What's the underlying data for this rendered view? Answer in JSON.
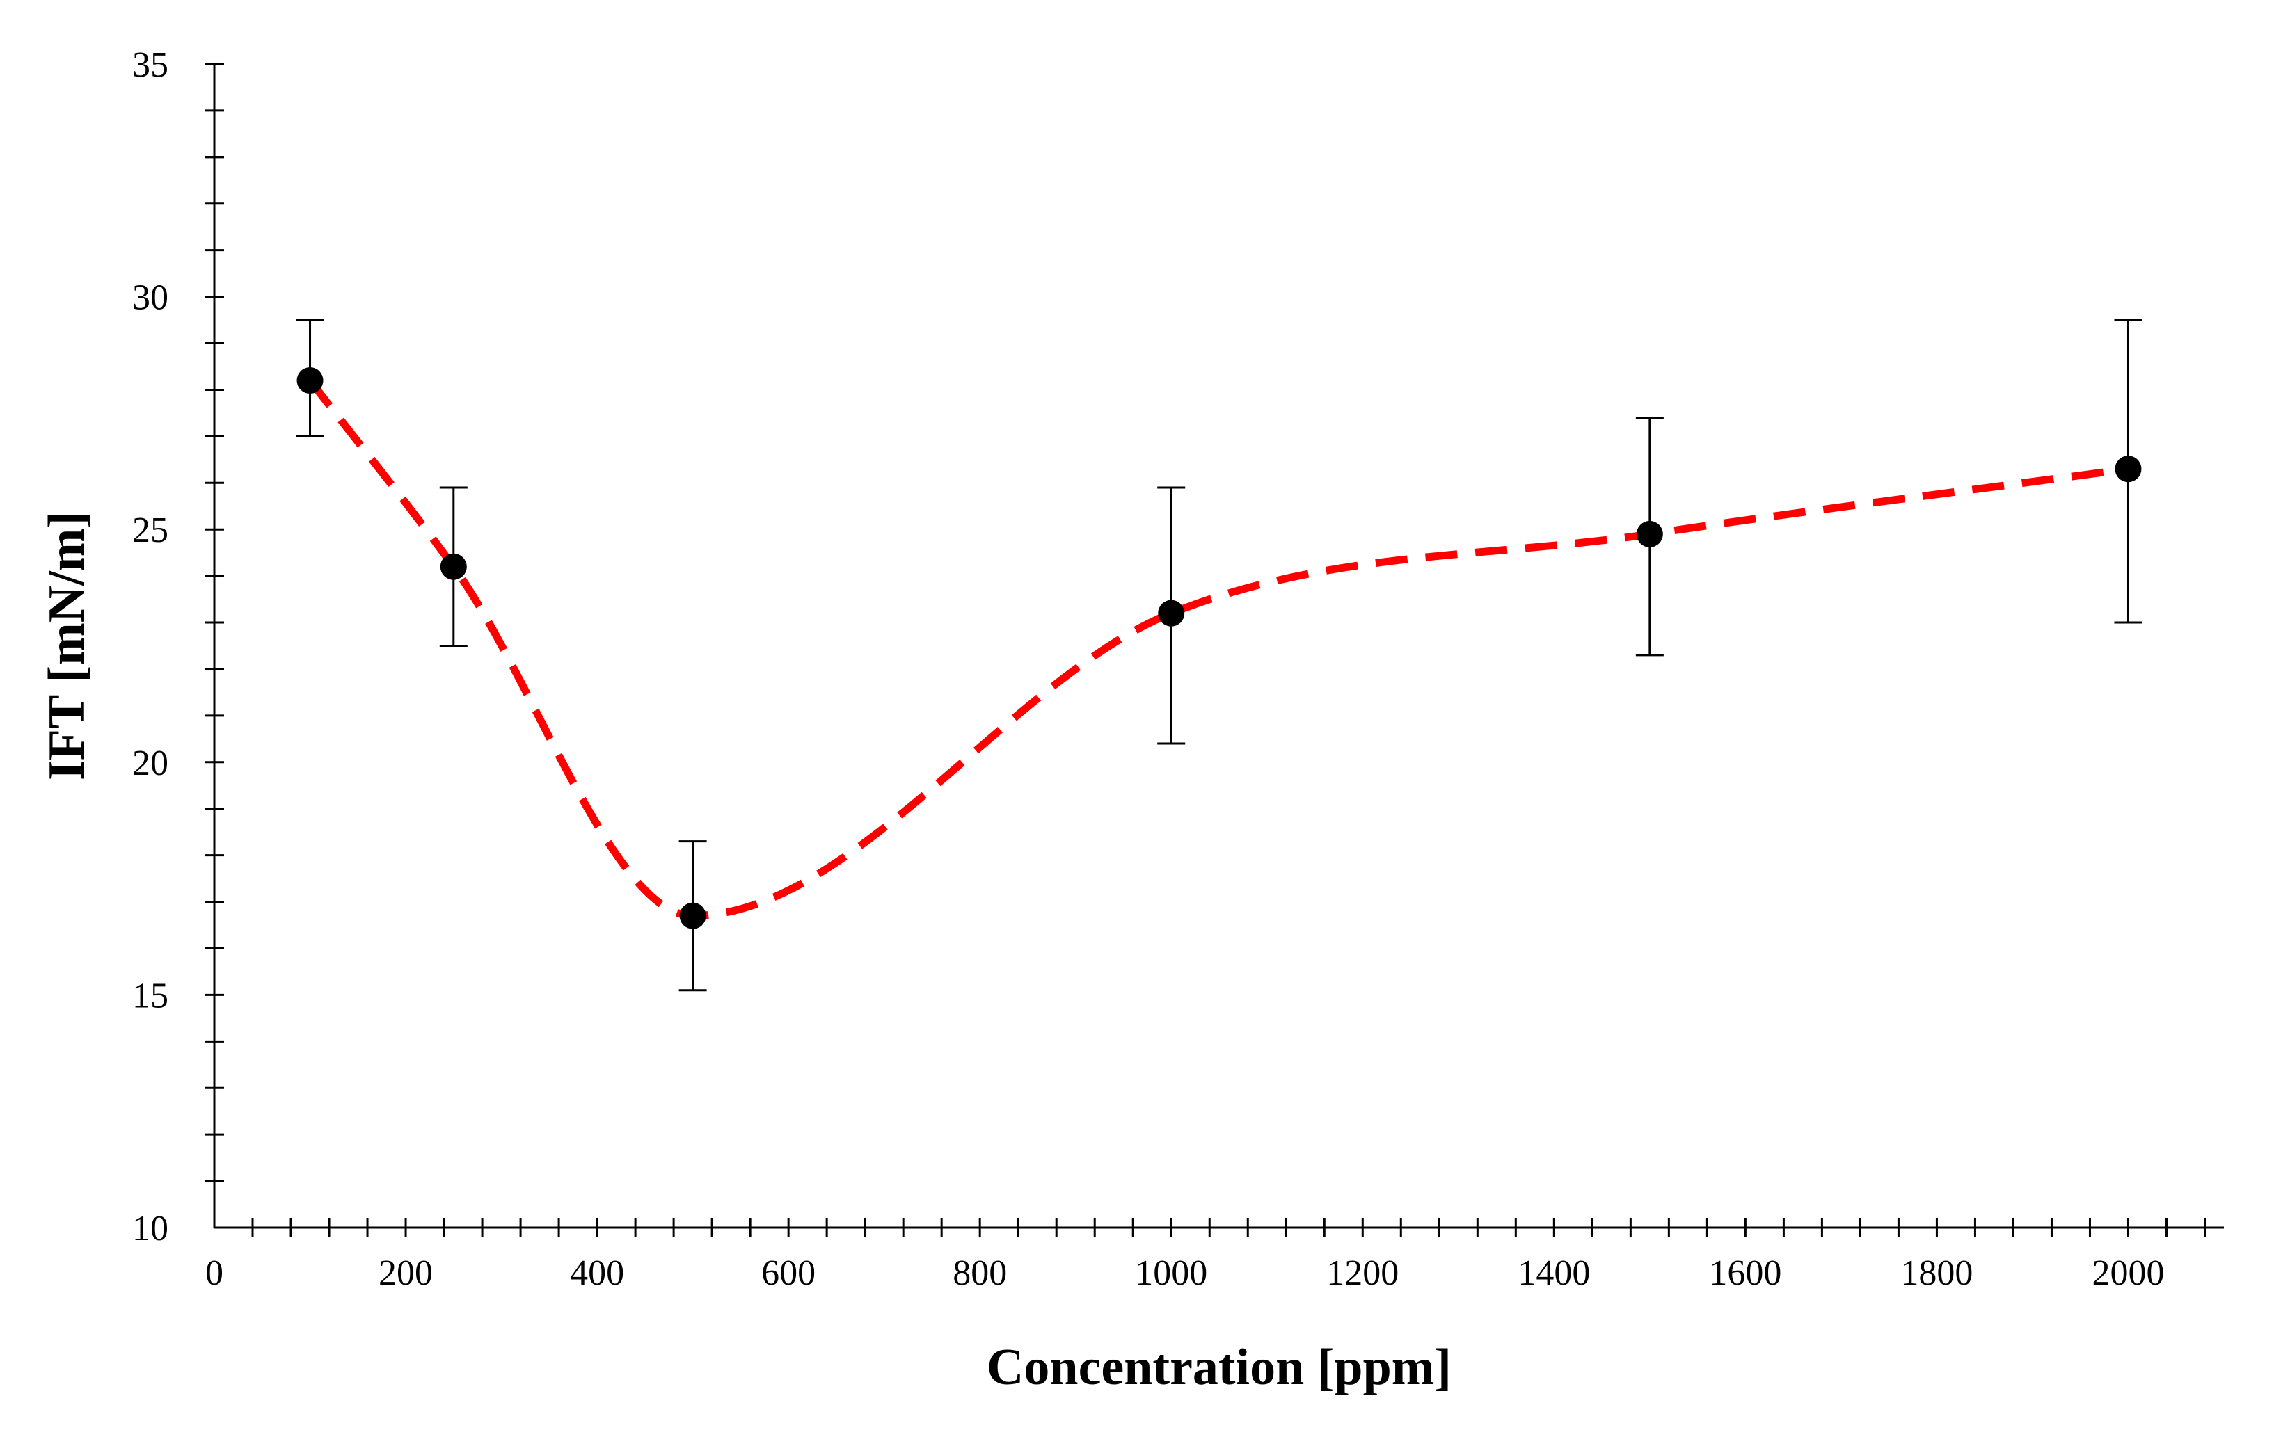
{
  "chart_data": {
    "type": "scatter",
    "title": "",
    "xlabel": "Concentration [ppm]",
    "ylabel": "IFT [mN/m]",
    "xlim": [
      0,
      2100
    ],
    "ylim": [
      10,
      35
    ],
    "x_major_ticks": [
      0,
      200,
      400,
      600,
      800,
      1000,
      1200,
      1400,
      1600,
      1800,
      2000
    ],
    "x_minor_step": 40,
    "y_major_ticks": [
      10,
      15,
      20,
      25,
      30,
      35
    ],
    "y_minor_step": 1,
    "grid": false,
    "colors": {
      "points": "#000000",
      "fit_line": "#ff0000",
      "axes": "#000000"
    },
    "series": [
      {
        "name": "IFT",
        "x": [
          100,
          250,
          500,
          1000,
          1500,
          2000
        ],
        "y": [
          28.2,
          24.2,
          16.7,
          23.2,
          24.9,
          26.3
        ],
        "error_low": [
          27.0,
          22.5,
          15.1,
          20.4,
          22.3,
          23.0
        ],
        "error_high": [
          29.5,
          25.9,
          18.3,
          25.9,
          27.4,
          29.5
        ]
      }
    ],
    "fit_line": {
      "style": "dashed",
      "type": "smooth",
      "through": "data points"
    }
  }
}
